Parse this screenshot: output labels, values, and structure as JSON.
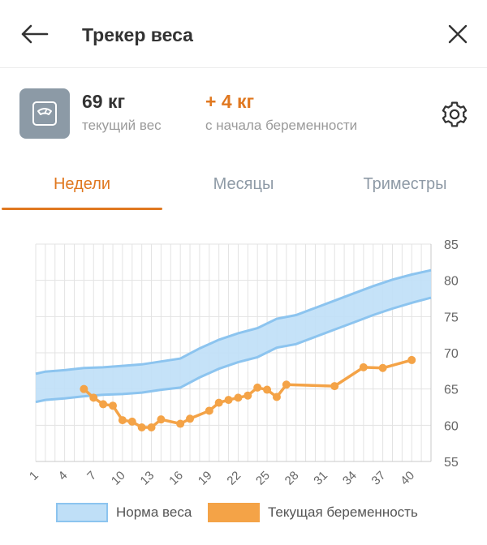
{
  "header": {
    "title": "Трекер веса"
  },
  "summary": {
    "weight_value": "69 кг",
    "weight_label": "текущий вес",
    "gain_value": "+ 4 кг",
    "gain_label": "с начала беременности"
  },
  "tabs": [
    {
      "label": "Недели",
      "active": true
    },
    {
      "label": "Месяцы",
      "active": false
    },
    {
      "label": "Триместры",
      "active": false
    }
  ],
  "colors": {
    "accent": "#e07820",
    "norm_fill": "#bfdff7",
    "norm_line": "#8cc4ef",
    "current_line": "#f4a347",
    "icon_tile": "#8c9aa6"
  },
  "icons": {
    "back": "arrow-left-icon",
    "close": "close-icon",
    "scale": "scale-icon",
    "settings": "gear-icon"
  },
  "chart_data": {
    "type": "line",
    "x_range": [
      1,
      42
    ],
    "y_range": [
      55,
      85
    ],
    "x_ticks": [
      1,
      4,
      7,
      10,
      13,
      16,
      19,
      22,
      25,
      28,
      31,
      34,
      37,
      40
    ],
    "y_ticks": [
      55,
      60,
      65,
      70,
      75,
      80,
      85
    ],
    "grid": true,
    "legend_position": "bottom",
    "series": [
      {
        "name": "Норма веса",
        "type": "band",
        "x": [
          1,
          2,
          4,
          6,
          8,
          10,
          12,
          14,
          16,
          18,
          20,
          22,
          24,
          26,
          28,
          30,
          32,
          34,
          36,
          38,
          40,
          42
        ],
        "lower": [
          63.2,
          63.5,
          63.7,
          64.0,
          64.2,
          64.3,
          64.5,
          64.9,
          65.2,
          66.6,
          67.8,
          68.7,
          69.4,
          70.7,
          71.2,
          72.2,
          73.2,
          74.2,
          75.2,
          76.1,
          76.9,
          77.6
        ],
        "upper": [
          67.1,
          67.4,
          67.6,
          67.9,
          68.0,
          68.2,
          68.4,
          68.8,
          69.2,
          70.6,
          71.8,
          72.7,
          73.4,
          74.7,
          75.2,
          76.2,
          77.2,
          78.2,
          79.2,
          80.1,
          80.8,
          81.4
        ]
      },
      {
        "name": "Текущая беременность",
        "type": "line",
        "x": [
          6,
          7,
          8,
          9,
          10,
          11,
          12,
          13,
          14,
          16,
          17,
          19,
          20,
          21,
          22,
          23,
          24,
          25,
          26,
          27,
          32,
          35,
          37,
          40
        ],
        "y": [
          65,
          63.8,
          62.9,
          62.7,
          60.7,
          60.5,
          59.7,
          59.7,
          60.8,
          60.2,
          60.9,
          62.0,
          63.1,
          63.5,
          63.8,
          64.1,
          65.2,
          64.9,
          63.9,
          65.6,
          65.4,
          68.0,
          67.9,
          69.0
        ]
      }
    ]
  }
}
